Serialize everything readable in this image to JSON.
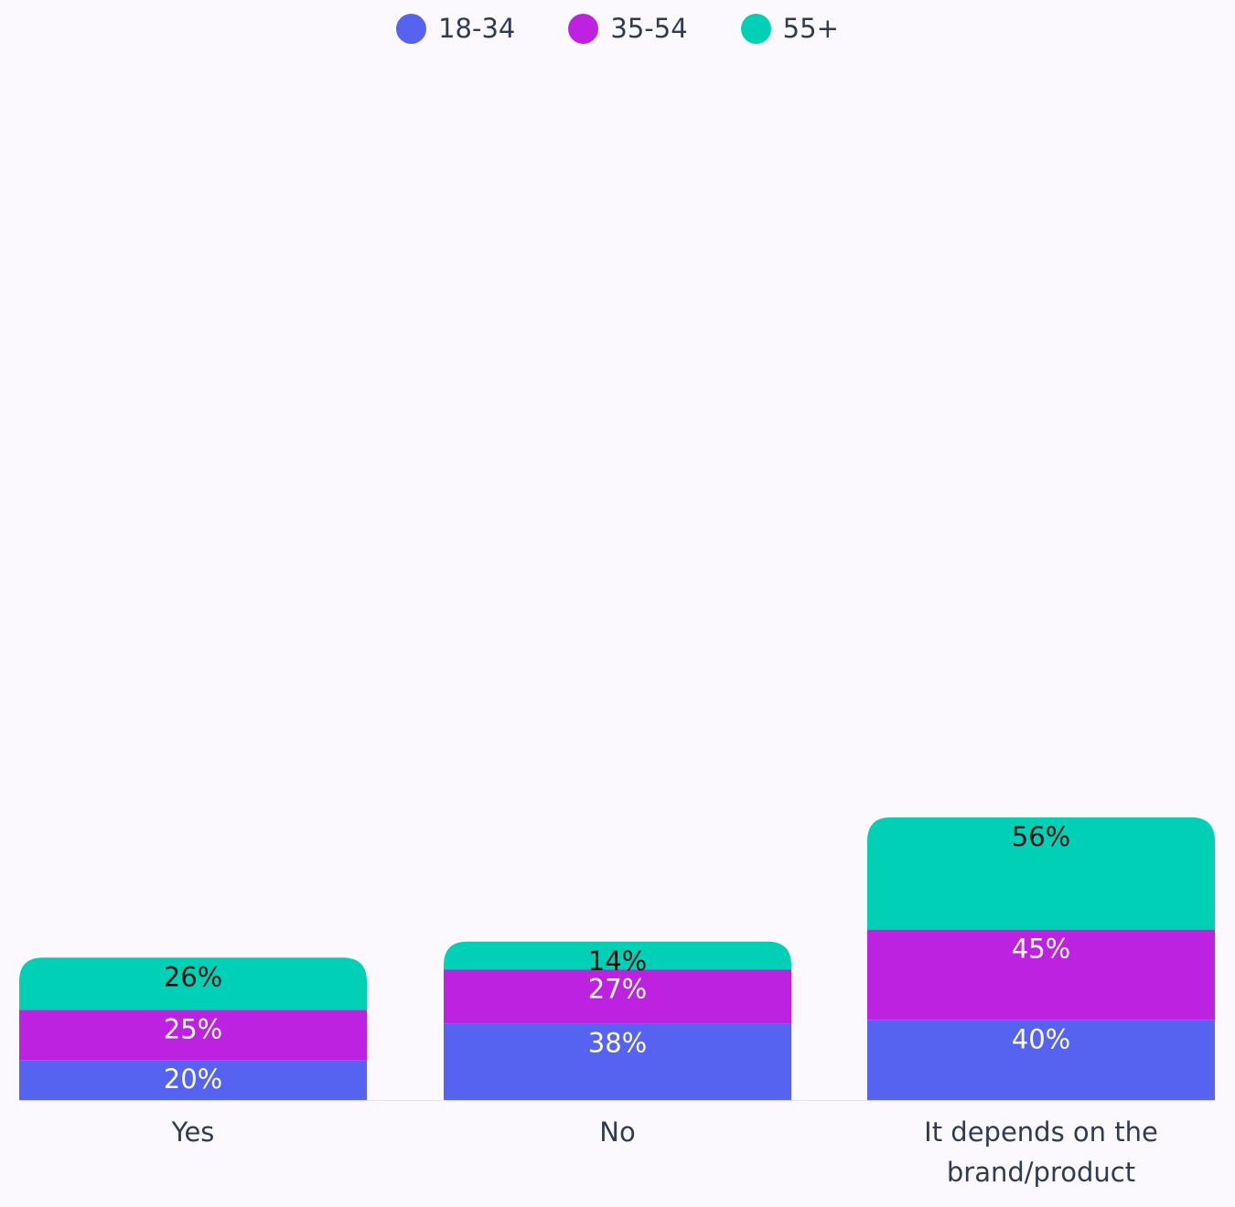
{
  "chart_data": {
    "type": "bar",
    "stacked": true,
    "categories": [
      "Yes",
      "No",
      "It depends on the brand/product"
    ],
    "category_lines": [
      [
        "Yes"
      ],
      [
        "No"
      ],
      [
        "It depends on the",
        "brand/product"
      ]
    ],
    "series": [
      {
        "name": "18-34",
        "color": "#5563f0",
        "values": [
          20,
          38,
          40
        ]
      },
      {
        "name": "35-54",
        "color": "#bd22e1",
        "values": [
          25,
          27,
          45
        ]
      },
      {
        "name": "55+",
        "color": "#00d0b5",
        "values": [
          26,
          14,
          56
        ]
      }
    ],
    "labels": [
      [
        "20%",
        "38%",
        "40%"
      ],
      [
        "25%",
        "27%",
        "45%"
      ],
      [
        "26%",
        "14%",
        "56%"
      ]
    ],
    "label_colors": [
      "#ffffff",
      "#ffffff",
      "#111111"
    ],
    "title": "",
    "xlabel": "",
    "ylabel": "",
    "legend_position": "top",
    "grid": false,
    "axis_line_color": "#e2e2ea",
    "tick_label_color": "#2f3b52"
  }
}
